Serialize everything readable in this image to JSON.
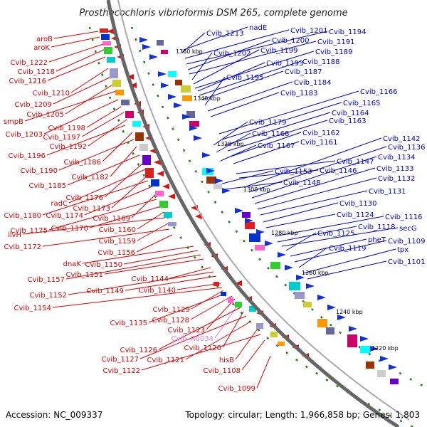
{
  "title": "Prosthecochloris vibrioformis DSM 265, complete genome",
  "footer": {
    "accession": "Accession: NC_009337",
    "summary": "Topology: circular; Length: 1,966,858 bp; Genes: 1,803"
  },
  "colors": {
    "left_label": "#e00000",
    "right_label": "#0000cc",
    "rna_label": "#e080e0",
    "backbone": "#777777",
    "tick_dash": "#208020"
  },
  "kbp_ticks": [
    "1360 kbp",
    "1340 kbp",
    "1320 kbp",
    "1300 kbp",
    "1280 kbp",
    "1260 kbp",
    "1240 kbp",
    "1220 kbp"
  ],
  "left_labels": [
    "aroB",
    "aroK",
    "Cvib_1222",
    "Cvib_1218",
    "Cvib_1216",
    "Cvib_1210",
    "Cvib_1209",
    "Cvib_1205",
    "smpB",
    "Cvib_1203",
    "Cvib_1198",
    "Cvib_1197",
    "Cvib_1192",
    "Cvib_1196",
    "Cvib_1186",
    "Cvib_1190",
    "Cvib_1182",
    "Cvib_1185",
    "Cvib_1176",
    "radC",
    "Cvib_1173",
    "Cvib_1180",
    "Cvib_1174",
    "Cvib_1169",
    "Cvib_1175",
    "Cvib_1170",
    "Cvib_1160",
    "ilvH",
    "Cvib_1159",
    "Cvib_1172",
    "Cvib_1156",
    "dnaK",
    "Cvib_1150",
    "Cvib_1157",
    "Cvib_1151",
    "Cvib_1144",
    "Cvib_1152",
    "Cvib_1149",
    "Cvib_1140",
    "Cvib_1154",
    "Cvib_1129",
    "Cvib_1135",
    "Cvib_1128",
    "Cvib_1123",
    "Cvib_R0034",
    "Cvib_1126",
    "Cvib_1120",
    "Cvib_1127",
    "Cvib_1121",
    "hisB",
    "Cvib_1122",
    "Cvib_1108",
    "Cvib_1099"
  ],
  "right_labels": [
    "nadE",
    "Cvib_1213",
    "Cvib_1201",
    "Cvib_1194",
    "Cvib_1200",
    "Cvib_1191",
    "Cvib_1202",
    "Cvib_1199",
    "Cvib_1189",
    "Cvib_1193",
    "Cvib_1188",
    "Cvib_1187",
    "Cvib_1195",
    "Cvib_1184",
    "Cvib_1183",
    "Cvib_1166",
    "Cvib_1165",
    "Cvib_1164",
    "Cvib_1179",
    "Cvib_1163",
    "Cvib_1168",
    "Cvib_1162",
    "Cvib_1167",
    "Cvib_1161",
    "Cvib_1142",
    "Cvib_1136",
    "Cvib_1147",
    "Cvib_1134",
    "Cvib_1153",
    "Cvib_1146",
    "Cvib_1133",
    "Cvib_1148",
    "Cvib_1132",
    "Cvib_1131",
    "Cvib_1130",
    "Cvib_1124",
    "Cvib_1116",
    "Cvib_1118",
    "secG",
    "Cvib_1125",
    "pheT",
    "Cvib_1109",
    "Cvib_1119",
    "tpx",
    "Cvib_1101"
  ]
}
